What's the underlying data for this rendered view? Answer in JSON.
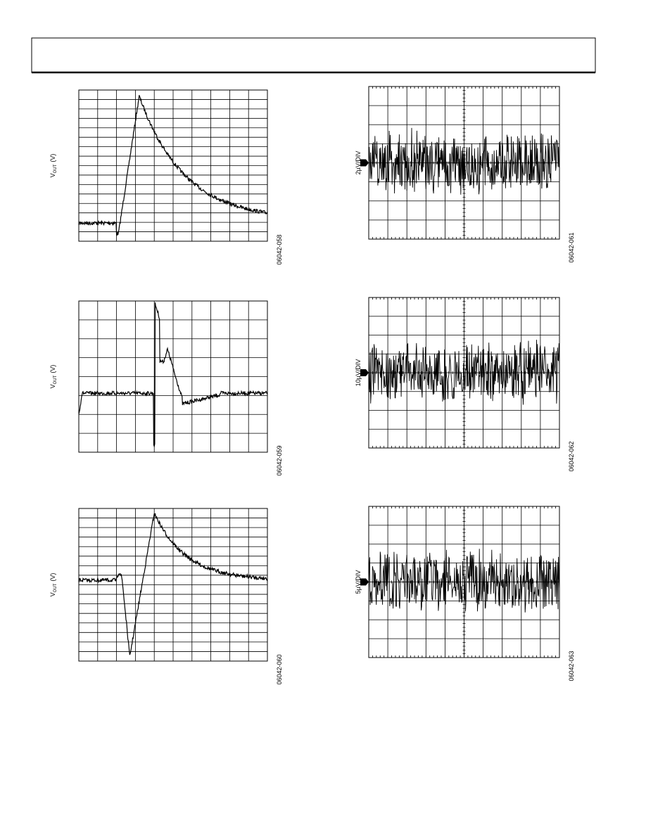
{
  "figures": [
    {
      "y_label": {
        "main": "V",
        "sub": "OUT",
        "unit": "(V)"
      },
      "figure_id": "06042-058"
    },
    {
      "y_label": {
        "main": "V",
        "sub": "OUT",
        "unit": "(V)"
      },
      "figure_id": "06042-059"
    },
    {
      "y_label": {
        "main": "V",
        "sub": "OUT",
        "unit": "(V)"
      },
      "figure_id": "06042-060"
    },
    {
      "y_label": "2µV/DIV",
      "figure_id": "06042-061"
    },
    {
      "y_label": "10µV/DIV",
      "figure_id": "06042-062"
    },
    {
      "y_label": "5µV/DIV",
      "figure_id": "06042-063"
    }
  ]
}
